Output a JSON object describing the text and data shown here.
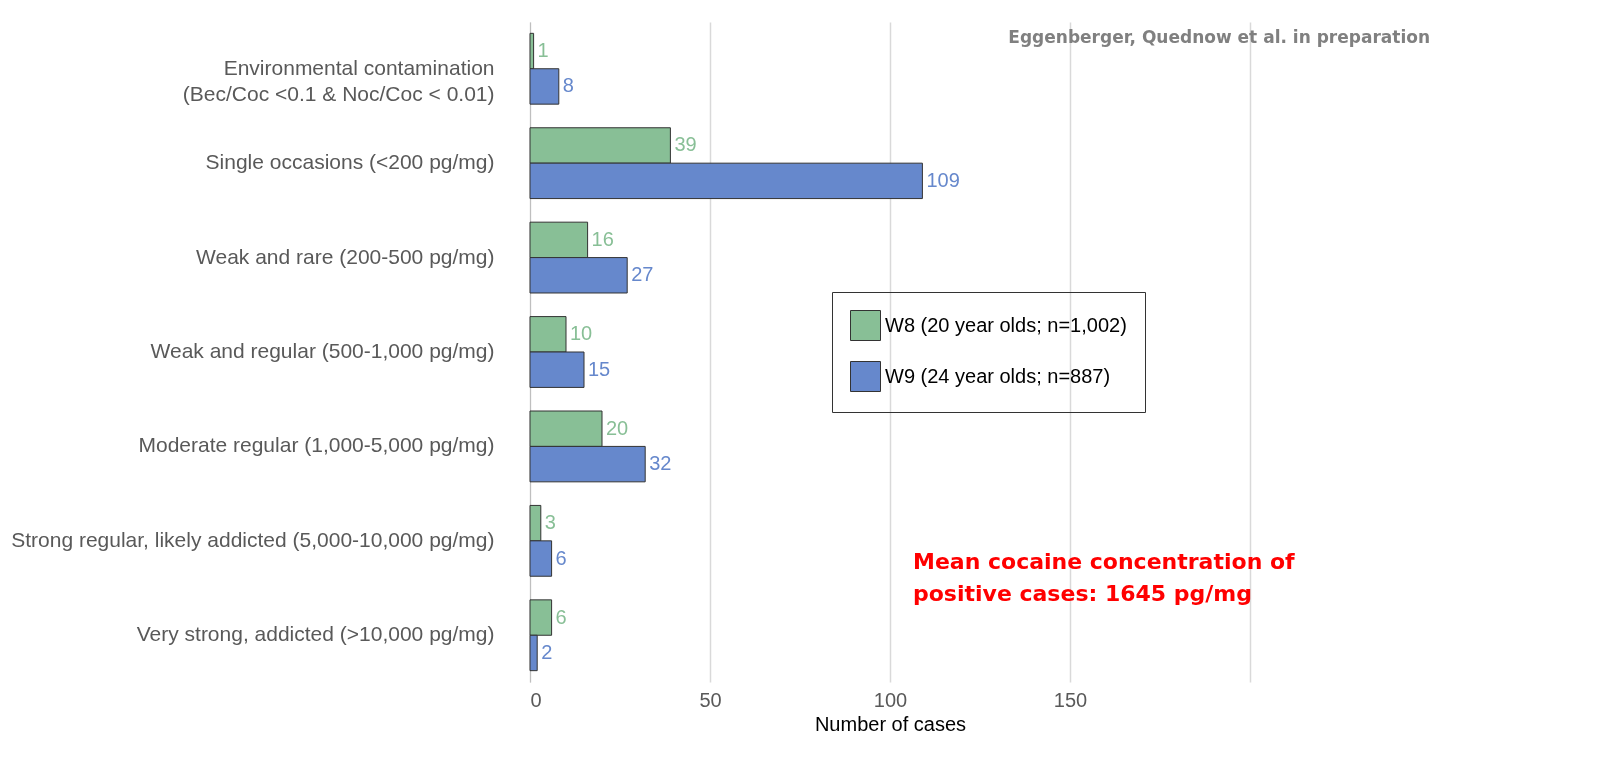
{
  "chart_data": {
    "type": "bar",
    "orientation": "horizontal",
    "xlabel": "Number of cases",
    "categories": [
      "Environmental contamination\n(Bec/Coc <0.1 & Noc/Coc < 0.01)",
      "Single occasions (<200 pg/mg)",
      "Weak and rare (200-500 pg/mg)",
      "Weak and regular (500-1,000 pg/mg)",
      "Moderate regular (1,000-5,000 pg/mg)",
      "Strong regular, likely addicted (5,000-10,000 pg/mg)",
      "Very strong, addicted (>10,000 pg/mg)"
    ],
    "series": [
      {
        "name": "W8 (20 year olds; n=1,002)",
        "color": "#88bf96",
        "values": [
          1,
          39,
          16,
          10,
          20,
          3,
          6
        ]
      },
      {
        "name": "W9 (24 year olds; n=887)",
        "color": "#6688cc",
        "values": [
          8,
          109,
          27,
          15,
          32,
          6,
          2
        ]
      }
    ],
    "xlim": [
      0,
      200
    ],
    "xticks": [
      0,
      50,
      100,
      150,
      {
        "value": 200,
        "label": null
      }
    ],
    "grid": "x",
    "legend": "right",
    "data_labels": true,
    "annotations": [
      "Eggenberger, Quednow et al. in preparation",
      "Mean cocaine concentration of positive cases: 1645 pg/mg"
    ]
  }
}
